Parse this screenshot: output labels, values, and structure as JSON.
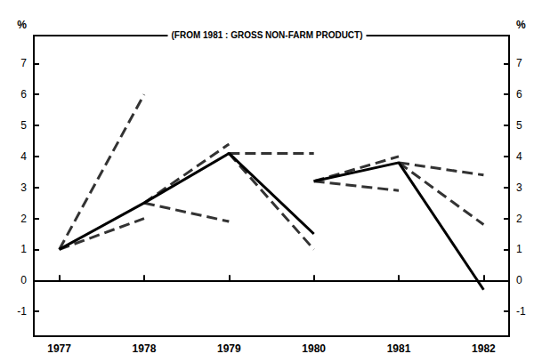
{
  "chart_data": {
    "type": "line",
    "title": "(FROM 1981 : GROSS NON-FARM PRODUCT)",
    "ylabel": "%",
    "y2label": "%",
    "xlim": [
      1976.7,
      1982.3
    ],
    "xticks": [
      1977,
      1978,
      1979,
      1980,
      1981,
      1982
    ],
    "ylim": [
      -1.8,
      7.9
    ],
    "yticks": [
      -1,
      0,
      1,
      2,
      3,
      4,
      5,
      6,
      7
    ],
    "y2lim": [
      -1.8,
      7.9
    ],
    "y2ticks": [
      -1,
      0,
      1,
      2,
      3,
      4,
      5,
      6,
      7
    ],
    "grid": false,
    "series": [
      {
        "x": [
          1977,
          1978,
          1979,
          1980
        ],
        "values": [
          1.0,
          2.5,
          4.1,
          1.5
        ],
        "color": "#000000",
        "line_style": "solid"
      },
      {
        "x": [
          1980,
          1981,
          1982
        ],
        "values": [
          3.2,
          3.8,
          -0.3
        ],
        "color": "#000000",
        "line_style": "solid"
      },
      {
        "x": [
          1977,
          1978
        ],
        "values": [
          1.0,
          6.0
        ],
        "color": "#333333",
        "line_style": "dashed"
      },
      {
        "x": [
          1977,
          1978
        ],
        "values": [
          1.0,
          2.0
        ],
        "color": "#333333",
        "line_style": "dashed"
      },
      {
        "x": [
          1978,
          1979
        ],
        "values": [
          2.5,
          1.9
        ],
        "color": "#333333",
        "line_style": "dashed"
      },
      {
        "x": [
          1978,
          1979
        ],
        "values": [
          2.5,
          4.4
        ],
        "color": "#333333",
        "line_style": "dashed"
      },
      {
        "x": [
          1979,
          1980
        ],
        "values": [
          4.1,
          4.1
        ],
        "color": "#333333",
        "line_style": "dashed"
      },
      {
        "x": [
          1979,
          1980
        ],
        "values": [
          4.1,
          1.0
        ],
        "color": "#333333",
        "line_style": "dashed"
      },
      {
        "x": [
          1980,
          1981
        ],
        "values": [
          3.2,
          2.9
        ],
        "color": "#333333",
        "line_style": "dashed"
      },
      {
        "x": [
          1980,
          1981
        ],
        "values": [
          3.2,
          4.0
        ],
        "color": "#333333",
        "line_style": "dashed"
      },
      {
        "x": [
          1981,
          1982
        ],
        "values": [
          3.8,
          3.4
        ],
        "color": "#333333",
        "line_style": "dashed"
      },
      {
        "x": [
          1981,
          1982
        ],
        "values": [
          3.8,
          1.8
        ],
        "color": "#333333",
        "line_style": "dashed"
      }
    ]
  }
}
